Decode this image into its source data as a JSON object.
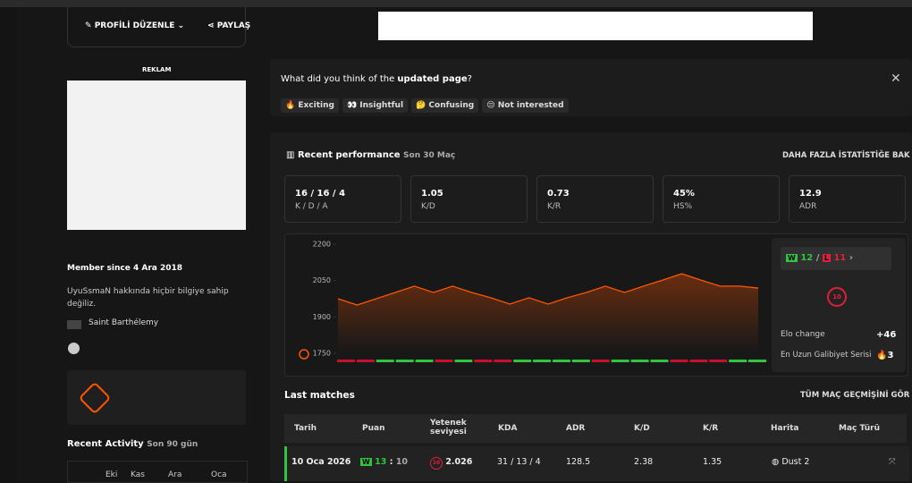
{
  "profile": {
    "edit": "PROFİLİ DÜZENLE",
    "share": "PAYLAŞ",
    "ad": "REKLAM",
    "member_since": "Member since 4 Ara 2018",
    "about": "UyuSsmaN hakkında hiçbir bilgiye sahip değiliz.",
    "country": "Saint Barthélemy"
  },
  "activity": {
    "title": "Recent Activity",
    "subtitle": "Son 90 gün",
    "months": [
      "Eki",
      "Kas",
      "Ara",
      "Oca"
    ]
  },
  "feedback": {
    "question": "What did you think of the ",
    "highlight": "updated page",
    "end": "?",
    "options": [
      "🔥 Exciting",
      "👀 Insightful",
      "🤔 Confusing",
      "😒 Not interested"
    ]
  },
  "performance": {
    "title": "Recent performance",
    "subtitle": "Son 30 Maç",
    "link": "DAHA FAZLA İSTATİSTİĞE BAK",
    "stats": [
      {
        "value": "16 / 16 / 4",
        "label": "K / D / A"
      },
      {
        "value": "1.05",
        "label": "K/D"
      },
      {
        "value": "0.73",
        "label": "K/R"
      },
      {
        "value": "45%",
        "label": "HS%"
      },
      {
        "value": "12.9",
        "label": "ADR"
      }
    ],
    "elo_chart": {
      "ylim": [
        1750,
        2200
      ],
      "yticks": [
        1750,
        1900,
        2050,
        2200
      ],
      "values": [
        1975,
        1949,
        1975,
        2001,
        2027,
        2001,
        2027,
        2001,
        1979,
        1953,
        1979,
        1953,
        1979,
        2001,
        2027,
        2001,
        2027,
        2052,
        2078,
        2052,
        2027,
        2027,
        2019
      ],
      "color": "#ff5500",
      "results": [
        "L",
        "L",
        "W",
        "W",
        "W",
        "L",
        "W",
        "L",
        "L",
        "W",
        "W",
        "W",
        "W",
        "L",
        "W",
        "W",
        "W",
        "L",
        "L",
        "L",
        "W",
        "W"
      ]
    },
    "record": {
      "win_letter": "W",
      "wins": "12",
      "sep": "/",
      "loss_letter": "L",
      "losses": "11"
    },
    "level": "10",
    "elo_change_label": "Elo change",
    "elo_change": "+46",
    "streak_label": "En Uzun Galibiyet Serisi",
    "streak": "3"
  },
  "matches": {
    "title": "Last matches",
    "link": "TÜM MAÇ GEÇMİŞİNİ GÖR",
    "headers": [
      "Tarih",
      "Puan",
      "Yetenek seviyesi",
      "KDA",
      "ADR",
      "K/D",
      "K/R",
      "Harita",
      "Maç Türü"
    ],
    "rows": [
      {
        "date": "10 Oca 2026",
        "result": "W",
        "score_a": "13",
        "score_sep": ":",
        "score_b": "10",
        "level": "10",
        "elo": "2.026",
        "kda": "31 / 13 / 4",
        "adr": "128.5",
        "kd": "2.38",
        "kr": "1.35",
        "map": "Dust 2"
      }
    ]
  }
}
